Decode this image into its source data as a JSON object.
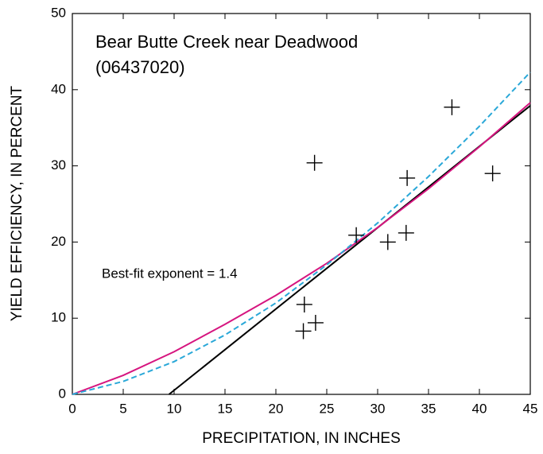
{
  "chart_data": {
    "type": "scatter",
    "title": "Bear Butte Creek near Deadwood",
    "subtitle": "(06437020)",
    "annotation": "Best-fit exponent = 1.4",
    "xlabel": "PRECIPITATION, IN INCHES",
    "ylabel": "YIELD EFFICIENCY, IN PERCENT",
    "xlim": [
      0,
      45
    ],
    "ylim": [
      0,
      50
    ],
    "xticks": [
      0,
      5,
      10,
      15,
      20,
      25,
      30,
      35,
      40,
      45
    ],
    "yticks": [
      0,
      10,
      20,
      30,
      40,
      50
    ],
    "points": {
      "color": "#000000",
      "x": [
        22.7,
        22.8,
        23.9,
        23.8,
        27.9,
        31.0,
        32.8,
        32.9,
        37.3,
        41.3
      ],
      "values": [
        8.3,
        11.8,
        9.4,
        30.4,
        20.9,
        20.0,
        21.2,
        28.4,
        37.7,
        29.0
      ]
    },
    "lines": [
      {
        "color": "#000000",
        "dashed": false,
        "x": [
          9.5,
          45
        ],
        "values": [
          0,
          37.9
        ]
      },
      {
        "color": "#d6157f",
        "dashed": false,
        "x": [
          0,
          5,
          10,
          15,
          20,
          25,
          30,
          35,
          40,
          45
        ],
        "values": [
          0,
          2.5,
          5.6,
          9.2,
          13.0,
          17.2,
          21.9,
          27.0,
          32.5,
          38.3
        ]
      },
      {
        "color": "#2aa8d8",
        "dashed": true,
        "x": [
          0,
          5,
          10,
          15,
          20,
          25,
          30,
          35,
          40,
          45
        ],
        "values": [
          0,
          1.7,
          4.3,
          7.8,
          12.0,
          17.0,
          22.5,
          28.6,
          35.2,
          42.3
        ]
      }
    ]
  }
}
